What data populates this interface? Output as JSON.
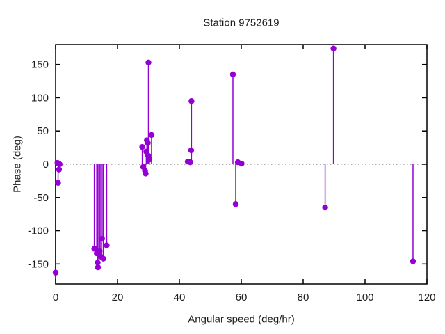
{
  "chart_data": {
    "type": "scatter",
    "style": "impulses-with-points",
    "title": "Station 9752619",
    "xlabel": "Angular speed (deg/hr)",
    "ylabel": "Phase (deg)",
    "xlim": [
      0,
      120
    ],
    "ylim": [
      -180,
      180
    ],
    "xticks": [
      0,
      20,
      40,
      60,
      80,
      100,
      120
    ],
    "yticks": [
      -150,
      -100,
      -50,
      0,
      50,
      100,
      150
    ],
    "grid": false,
    "legend": "none",
    "zero_line": true,
    "zero_line_color": "#606060",
    "point_color": "#9400d3",
    "points": [
      [
        0.0,
        -163
      ],
      [
        0.6,
        2
      ],
      [
        0.8,
        -28
      ],
      [
        1.1,
        -8
      ],
      [
        1.3,
        0
      ],
      [
        12.5,
        -127
      ],
      [
        13.3,
        -134
      ],
      [
        13.6,
        -148
      ],
      [
        13.7,
        -155
      ],
      [
        14.2,
        -131
      ],
      [
        14.6,
        -139
      ],
      [
        15.0,
        -112
      ],
      [
        15.4,
        -142
      ],
      [
        16.5,
        -122
      ],
      [
        28.0,
        26
      ],
      [
        28.3,
        -4
      ],
      [
        28.9,
        -10
      ],
      [
        29.1,
        -14
      ],
      [
        29.3,
        19
      ],
      [
        29.5,
        36
      ],
      [
        29.8,
        32
      ],
      [
        29.9,
        13
      ],
      [
        30.0,
        153
      ],
      [
        30.3,
        7
      ],
      [
        31.0,
        44
      ],
      [
        42.7,
        4
      ],
      [
        43.5,
        3
      ],
      [
        43.8,
        21
      ],
      [
        43.9,
        95
      ],
      [
        57.3,
        135
      ],
      [
        58.2,
        -60
      ],
      [
        58.9,
        3
      ],
      [
        60.1,
        1
      ],
      [
        87.1,
        -65
      ],
      [
        89.8,
        174
      ],
      [
        115.5,
        -146
      ]
    ]
  }
}
